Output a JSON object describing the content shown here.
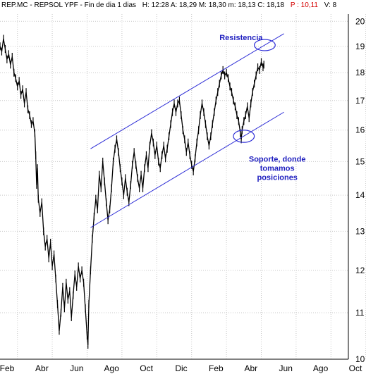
{
  "header": {
    "symbol": "REP.MC - REPSOL YPF - Fin de dia 1 dias",
    "quote_plain": "H: 12:28  A: 18,29  M: 18,30  m: 18,13  C: 18,18",
    "quote_red": "P : 10,11",
    "quote_tail": "V: 8"
  },
  "colors": {
    "price": "#000000",
    "channel": "#2d2dd6",
    "annotation": "#1f1fbf",
    "grid": "#c8c8c8",
    "header_red": "#d40000"
  },
  "chart_data": {
    "type": "line",
    "title": "",
    "xlabel": "",
    "ylabel": "",
    "x_tick_labels": [
      "Feb",
      "Abr",
      "Jun",
      "Ago",
      "Oct",
      "Dic",
      "Feb",
      "Abr",
      "Jun",
      "Ago",
      "Oct"
    ],
    "x_range": [
      0,
      20
    ],
    "y_ticks": [
      10,
      11,
      12,
      13,
      14,
      15,
      16,
      17,
      18,
      19,
      20
    ],
    "y_range": [
      10,
      20.3
    ],
    "y_scale": "log",
    "grid": true,
    "series": [
      {
        "values": [
          [
            0.0,
            19.0
          ],
          [
            0.1,
            18.8
          ],
          [
            0.2,
            19.3
          ],
          [
            0.3,
            18.9
          ],
          [
            0.4,
            18.5
          ],
          [
            0.5,
            18.7
          ],
          [
            0.6,
            18.3
          ],
          [
            0.7,
            18.6
          ],
          [
            0.8,
            18.0
          ],
          [
            0.9,
            17.8
          ],
          [
            1.0,
            17.5
          ],
          [
            1.1,
            17.7
          ],
          [
            1.2,
            17.2
          ],
          [
            1.3,
            17.4
          ],
          [
            1.4,
            16.9
          ],
          [
            1.5,
            17.3
          ],
          [
            1.6,
            16.7
          ],
          [
            1.7,
            16.5
          ],
          [
            1.8,
            16.2
          ],
          [
            1.9,
            16.3
          ],
          [
            2.0,
            15.9
          ],
          [
            2.05,
            15.2
          ],
          [
            2.1,
            14.3
          ],
          [
            2.15,
            14.8
          ],
          [
            2.2,
            13.9
          ],
          [
            2.3,
            13.5
          ],
          [
            2.4,
            13.8
          ],
          [
            2.5,
            13.0
          ],
          [
            2.6,
            12.6
          ],
          [
            2.7,
            12.8
          ],
          [
            2.8,
            12.3
          ],
          [
            2.9,
            12.7
          ],
          [
            3.0,
            12.1
          ],
          [
            3.1,
            12.4
          ],
          [
            3.2,
            11.8
          ],
          [
            3.3,
            11.2
          ],
          [
            3.4,
            10.6
          ],
          [
            3.5,
            11.0
          ],
          [
            3.6,
            11.6
          ],
          [
            3.7,
            11.1
          ],
          [
            3.8,
            11.7
          ],
          [
            3.9,
            11.3
          ],
          [
            4.0,
            11.5
          ],
          [
            4.1,
            10.9
          ],
          [
            4.2,
            11.4
          ],
          [
            4.3,
            11.9
          ],
          [
            4.4,
            11.6
          ],
          [
            4.5,
            12.1
          ],
          [
            4.6,
            11.8
          ],
          [
            4.7,
            12.0
          ],
          [
            4.8,
            11.7
          ],
          [
            4.9,
            11.1
          ],
          [
            5.0,
            10.5
          ],
          [
            5.05,
            10.3
          ],
          [
            5.1,
            11.2
          ],
          [
            5.2,
            12.0
          ],
          [
            5.3,
            12.8
          ],
          [
            5.4,
            13.4
          ],
          [
            5.5,
            13.9
          ],
          [
            5.6,
            13.6
          ],
          [
            5.7,
            14.6
          ],
          [
            5.8,
            14.2
          ],
          [
            5.9,
            15.0
          ],
          [
            6.0,
            14.4
          ],
          [
            6.1,
            13.8
          ],
          [
            6.2,
            13.3
          ],
          [
            6.3,
            13.6
          ],
          [
            6.4,
            14.2
          ],
          [
            6.5,
            15.0
          ],
          [
            6.6,
            15.4
          ],
          [
            6.7,
            15.7
          ],
          [
            6.8,
            15.3
          ],
          [
            6.9,
            14.8
          ],
          [
            7.0,
            14.4
          ],
          [
            7.1,
            14.0
          ],
          [
            7.2,
            14.5
          ],
          [
            7.3,
            14.1
          ],
          [
            7.4,
            13.8
          ],
          [
            7.5,
            14.3
          ],
          [
            7.6,
            14.9
          ],
          [
            7.7,
            15.3
          ],
          [
            7.8,
            14.9
          ],
          [
            7.9,
            14.5
          ],
          [
            8.0,
            14.2
          ],
          [
            8.1,
            14.6
          ],
          [
            8.2,
            14.2
          ],
          [
            8.3,
            14.8
          ],
          [
            8.4,
            15.2
          ],
          [
            8.5,
            14.8
          ],
          [
            8.6,
            15.5
          ],
          [
            8.7,
            15.9
          ],
          [
            8.8,
            15.6
          ],
          [
            8.9,
            15.2
          ],
          [
            9.0,
            15.5
          ],
          [
            9.1,
            15.0
          ],
          [
            9.2,
            14.8
          ],
          [
            9.3,
            15.2
          ],
          [
            9.4,
            15.5
          ],
          [
            9.5,
            15.1
          ],
          [
            9.6,
            15.4
          ],
          [
            9.7,
            15.8
          ],
          [
            9.8,
            16.2
          ],
          [
            9.9,
            16.6
          ],
          [
            10.0,
            16.9
          ],
          [
            10.1,
            16.6
          ],
          [
            10.2,
            16.9
          ],
          [
            10.3,
            17.0
          ],
          [
            10.4,
            16.5
          ],
          [
            10.5,
            16.0
          ],
          [
            10.6,
            15.7
          ],
          [
            10.7,
            15.3
          ],
          [
            10.8,
            15.6
          ],
          [
            10.9,
            15.2
          ],
          [
            11.0,
            14.9
          ],
          [
            11.1,
            14.7
          ],
          [
            11.2,
            15.1
          ],
          [
            11.3,
            15.6
          ],
          [
            11.4,
            16.0
          ],
          [
            11.5,
            16.5
          ],
          [
            11.6,
            16.9
          ],
          [
            11.7,
            16.6
          ],
          [
            11.8,
            16.2
          ],
          [
            11.9,
            15.8
          ],
          [
            12.0,
            15.5
          ],
          [
            12.1,
            15.8
          ],
          [
            12.2,
            16.2
          ],
          [
            12.3,
            16.6
          ],
          [
            12.4,
            17.0
          ],
          [
            12.5,
            17.3
          ],
          [
            12.6,
            17.6
          ],
          [
            12.7,
            17.9
          ],
          [
            12.8,
            18.1
          ],
          [
            12.9,
            17.9
          ],
          [
            13.0,
            18.0
          ],
          [
            13.1,
            17.8
          ],
          [
            13.2,
            17.5
          ],
          [
            13.3,
            17.3
          ],
          [
            13.4,
            17.0
          ],
          [
            13.5,
            16.8
          ],
          [
            13.6,
            16.5
          ],
          [
            13.7,
            16.3
          ],
          [
            13.8,
            15.9
          ],
          [
            13.85,
            15.7
          ],
          [
            13.9,
            16.0
          ],
          [
            14.0,
            16.3
          ],
          [
            14.1,
            16.5
          ],
          [
            14.2,
            16.8
          ],
          [
            14.3,
            16.4
          ],
          [
            14.4,
            16.9
          ],
          [
            14.5,
            17.3
          ],
          [
            14.6,
            17.6
          ],
          [
            14.7,
            17.9
          ],
          [
            14.8,
            18.2
          ],
          [
            14.9,
            18.1
          ],
          [
            15.0,
            18.4
          ],
          [
            15.1,
            18.2
          ],
          [
            15.15,
            18.3
          ]
        ]
      }
    ],
    "trend_lines": [
      {
        "from": [
          5.2,
          15.4
        ],
        "to": [
          16.3,
          19.5
        ]
      },
      {
        "from": [
          5.2,
          13.1
        ],
        "to": [
          16.3,
          16.6
        ]
      }
    ],
    "ellipses": [
      {
        "center": [
          15.2,
          19.05
        ],
        "rx": 0.6,
        "ry": 0.22
      },
      {
        "center": [
          14.0,
          15.8
        ],
        "rx": 0.6,
        "ry": 0.2
      }
    ],
    "annotations": [
      {
        "lines": [
          "Resistencia"
        ],
        "at": [
          12.6,
          19.25
        ]
      },
      {
        "lines": [
          "Soporte, donde",
          "tomamos",
          "posiciones"
        ],
        "at": [
          14.3,
          15.0
        ]
      }
    ]
  }
}
